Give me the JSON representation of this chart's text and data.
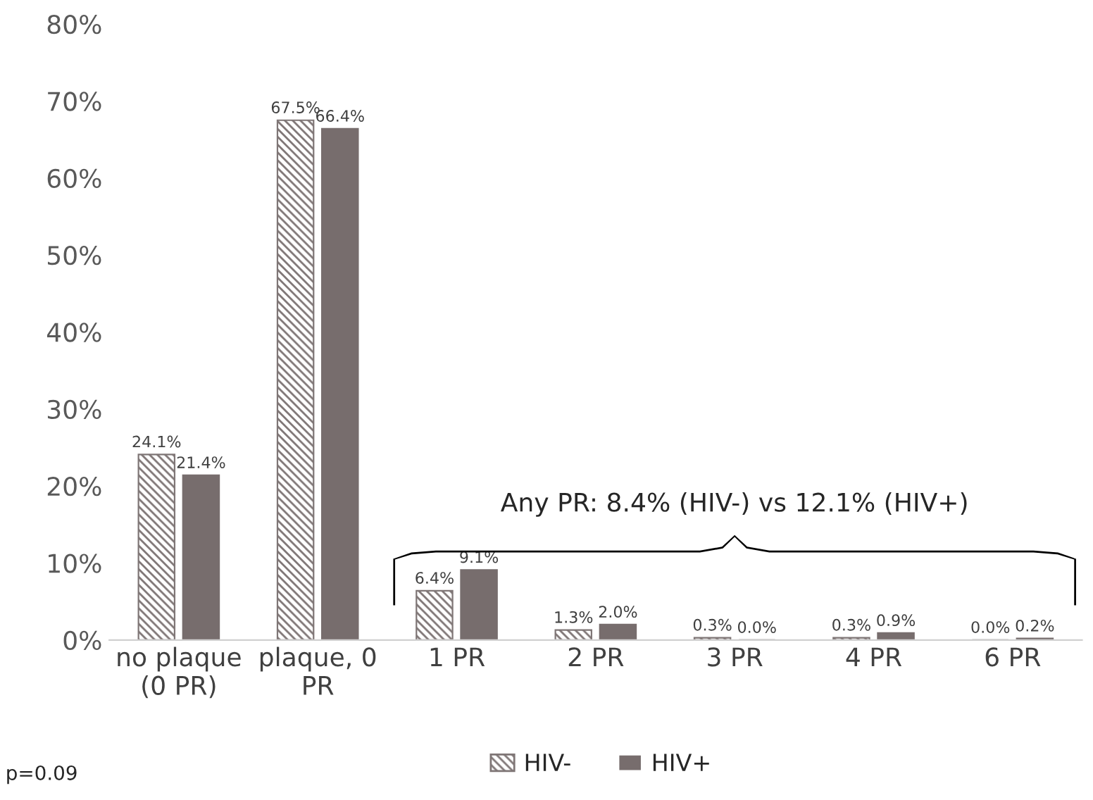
{
  "chart_data": {
    "type": "bar",
    "categories": [
      "no plaque (0 PR)",
      "plaque, 0 PR",
      "1 PR",
      "2 PR",
      "3 PR",
      "4 PR",
      "6 PR"
    ],
    "series": [
      {
        "name": "HIV-",
        "color": "#7f7676",
        "values": [
          24.1,
          67.5,
          6.4,
          1.3,
          0.3,
          0.3,
          0.0
        ],
        "value_labels": [
          "24.1%",
          "67.5%",
          "6.4%",
          "1.3%",
          "0.3%",
          "0.3%",
          "0.0%"
        ]
      },
      {
        "name": "HIV+",
        "color": "#776d6d",
        "values": [
          21.4,
          66.4,
          9.1,
          2.0,
          0.0,
          0.9,
          0.2
        ],
        "value_labels": [
          "21.4%",
          "66.4%",
          "9.1%",
          "2.0%",
          "0.0%",
          "0.9%",
          "0.2%"
        ]
      }
    ],
    "ylim": [
      0,
      80
    ],
    "yticks": [
      {
        "value": 0,
        "label": "0%"
      },
      {
        "value": 10,
        "label": "10%"
      },
      {
        "value": 20,
        "label": "20%"
      },
      {
        "value": 30,
        "label": "30%"
      },
      {
        "value": 40,
        "label": "40%"
      },
      {
        "value": 50,
        "label": "50%"
      },
      {
        "value": 60,
        "label": "60%"
      },
      {
        "value": 70,
        "label": "70%"
      },
      {
        "value": 80,
        "label": "80%"
      }
    ],
    "grid": false,
    "legend": "bottom",
    "annotations": [
      "Any PR: 8.4% (HIV-) vs 12.1% (HIV+)",
      "p=0.09"
    ]
  }
}
